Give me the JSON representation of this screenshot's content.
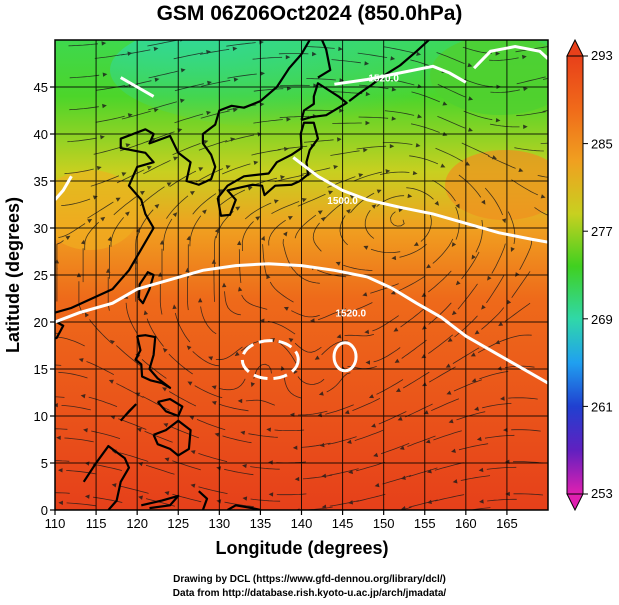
{
  "title": "GSM 06Z06Oct2024 (850.0hPa)",
  "credits": {
    "line1": "Drawing by DCL (https://www.gfd-dennou.org/library/dcl/)",
    "line2": "Data from http://database.rish.kyoto-u.ac.jp/arch/jmadata/"
  },
  "chart_data": {
    "type": "heatmap",
    "xlabel": "Longitude (degrees)",
    "ylabel": "Latitude  (degrees)",
    "xlim": [
      110,
      170
    ],
    "ylim": [
      0,
      50
    ],
    "x_ticks": [
      110,
      115,
      120,
      125,
      130,
      135,
      140,
      145,
      150,
      155,
      160,
      165
    ],
    "y_ticks": [
      0,
      5,
      10,
      15,
      20,
      25,
      30,
      35,
      40,
      45
    ],
    "grid": true,
    "colorbar": {
      "min": 253,
      "max": 293,
      "tick_labels": [
        293,
        285,
        277,
        269,
        261,
        253
      ],
      "placement": "right"
    },
    "contours": [
      {
        "label": "1520.0",
        "lon": 150,
        "lat": 46
      },
      {
        "label": "1500.0",
        "lon": 145,
        "lat": 33
      },
      {
        "label": "1520.0",
        "lon": 146,
        "lat": 21
      }
    ],
    "colors": {
      "warm": "#e8401a",
      "mid": "#f0a020",
      "green": "#40d020",
      "cool": "#30d0a0",
      "contour": "#ffffff",
      "coast": "#000000"
    }
  }
}
